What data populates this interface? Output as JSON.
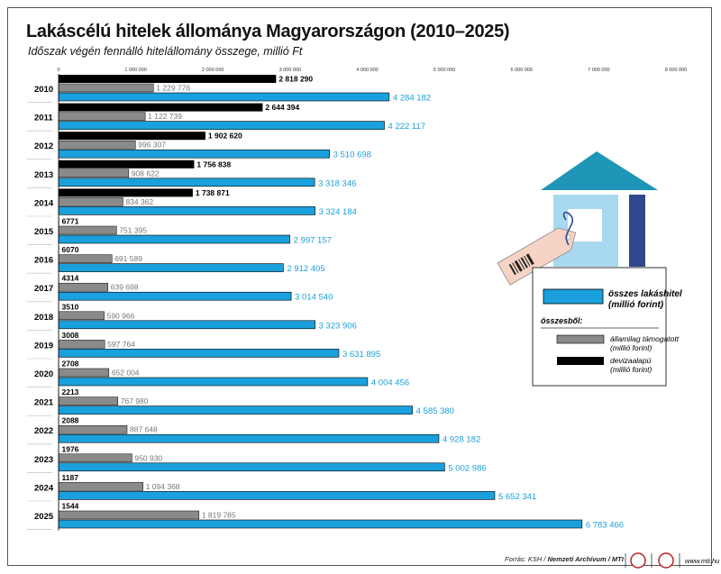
{
  "chart_data": {
    "type": "bar",
    "title": "Lakáscélú hitelek állománya Magyarországon (2010–2025)",
    "subtitle": "Időszak végén fennálló hitelállomány összege, millió Ft",
    "xlim": [
      0,
      8000000
    ],
    "ticks": [
      "0",
      "1 000 000",
      "2 000 000",
      "3 000 000",
      "4 000 000",
      "5 000 000",
      "6 000 000",
      "7 000 000",
      "8 000 000"
    ],
    "tick_values": [
      0,
      1000000,
      2000000,
      3000000,
      4000000,
      5000000,
      6000000,
      7000000,
      8000000
    ],
    "categories": [
      "2010",
      "2011",
      "2012",
      "2013",
      "2014",
      "2015",
      "2016",
      "2017",
      "2018",
      "2019",
      "2020",
      "2021",
      "2022",
      "2023",
      "2024",
      "2025"
    ],
    "series": [
      {
        "key": "fx",
        "color": "#000000",
        "values": [
          2818290,
          2644394,
          1902620,
          1756838,
          1738871,
          6771,
          6070,
          4314,
          3510,
          3008,
          2708,
          2213,
          2088,
          1976,
          1187,
          1544
        ],
        "labels": [
          "2 818 290",
          "2 644 394",
          "1 902 620",
          "1 756 838",
          "1 738 871",
          "6771",
          "6070",
          "4314",
          "3510",
          "3008",
          "2708",
          "2213",
          "2088",
          "1976",
          "1187",
          "1544"
        ]
      },
      {
        "key": "gov",
        "color": "#8a8a8a",
        "values": [
          1229776,
          1122739,
          996307,
          908622,
          834362,
          751395,
          691589,
          639698,
          590966,
          597764,
          652004,
          767980,
          887648,
          950930,
          1094368,
          1819785
        ],
        "labels": [
          "1 229 776",
          "1 122 739",
          "996 307",
          "908 622",
          "834 362",
          "751 395",
          "691 589",
          "639 698",
          "590 966",
          "597 764",
          "652 004",
          "767 980",
          "887 648",
          "950 930",
          "1 094 368",
          "1 819 785"
        ]
      },
      {
        "key": "total",
        "color": "#1aa0dc",
        "values": [
          4284182,
          4222117,
          3510698,
          3318346,
          3324184,
          2997157,
          2912405,
          3014540,
          3323906,
          3631895,
          4004456,
          4585380,
          4928182,
          5002986,
          5652341,
          6783466
        ],
        "labels": [
          "4 284 182",
          "4 222 117",
          "3 510 698",
          "3 318 346",
          "3 324 184",
          "2 997 157",
          "2 912 405",
          "3 014 540",
          "3 323 906",
          "3 631 895",
          "4 004 456",
          "4 585 380",
          "4 928 182",
          "5 002 986",
          "5 652 341",
          "6 783 466"
        ]
      }
    ],
    "legend": {
      "position": "right",
      "total": "összes lakáshitel\n(millió forint)",
      "of_which": "összesből:",
      "gov": "államilag támogatott\n(millió forint)",
      "fx": "devizaalapú\n(millió forint)"
    }
  },
  "footer": {
    "source_prefix": "Forrás: KSH / ",
    "source_bold": "Nemzeti Archívum / MTI",
    "url": "www.mti.hu"
  },
  "colors": {
    "total": "#1aa0dc",
    "gov": "#8a8a8a",
    "fx": "#000000",
    "house_roof": "#1f95b8",
    "house_door": "#2e4a8c"
  }
}
